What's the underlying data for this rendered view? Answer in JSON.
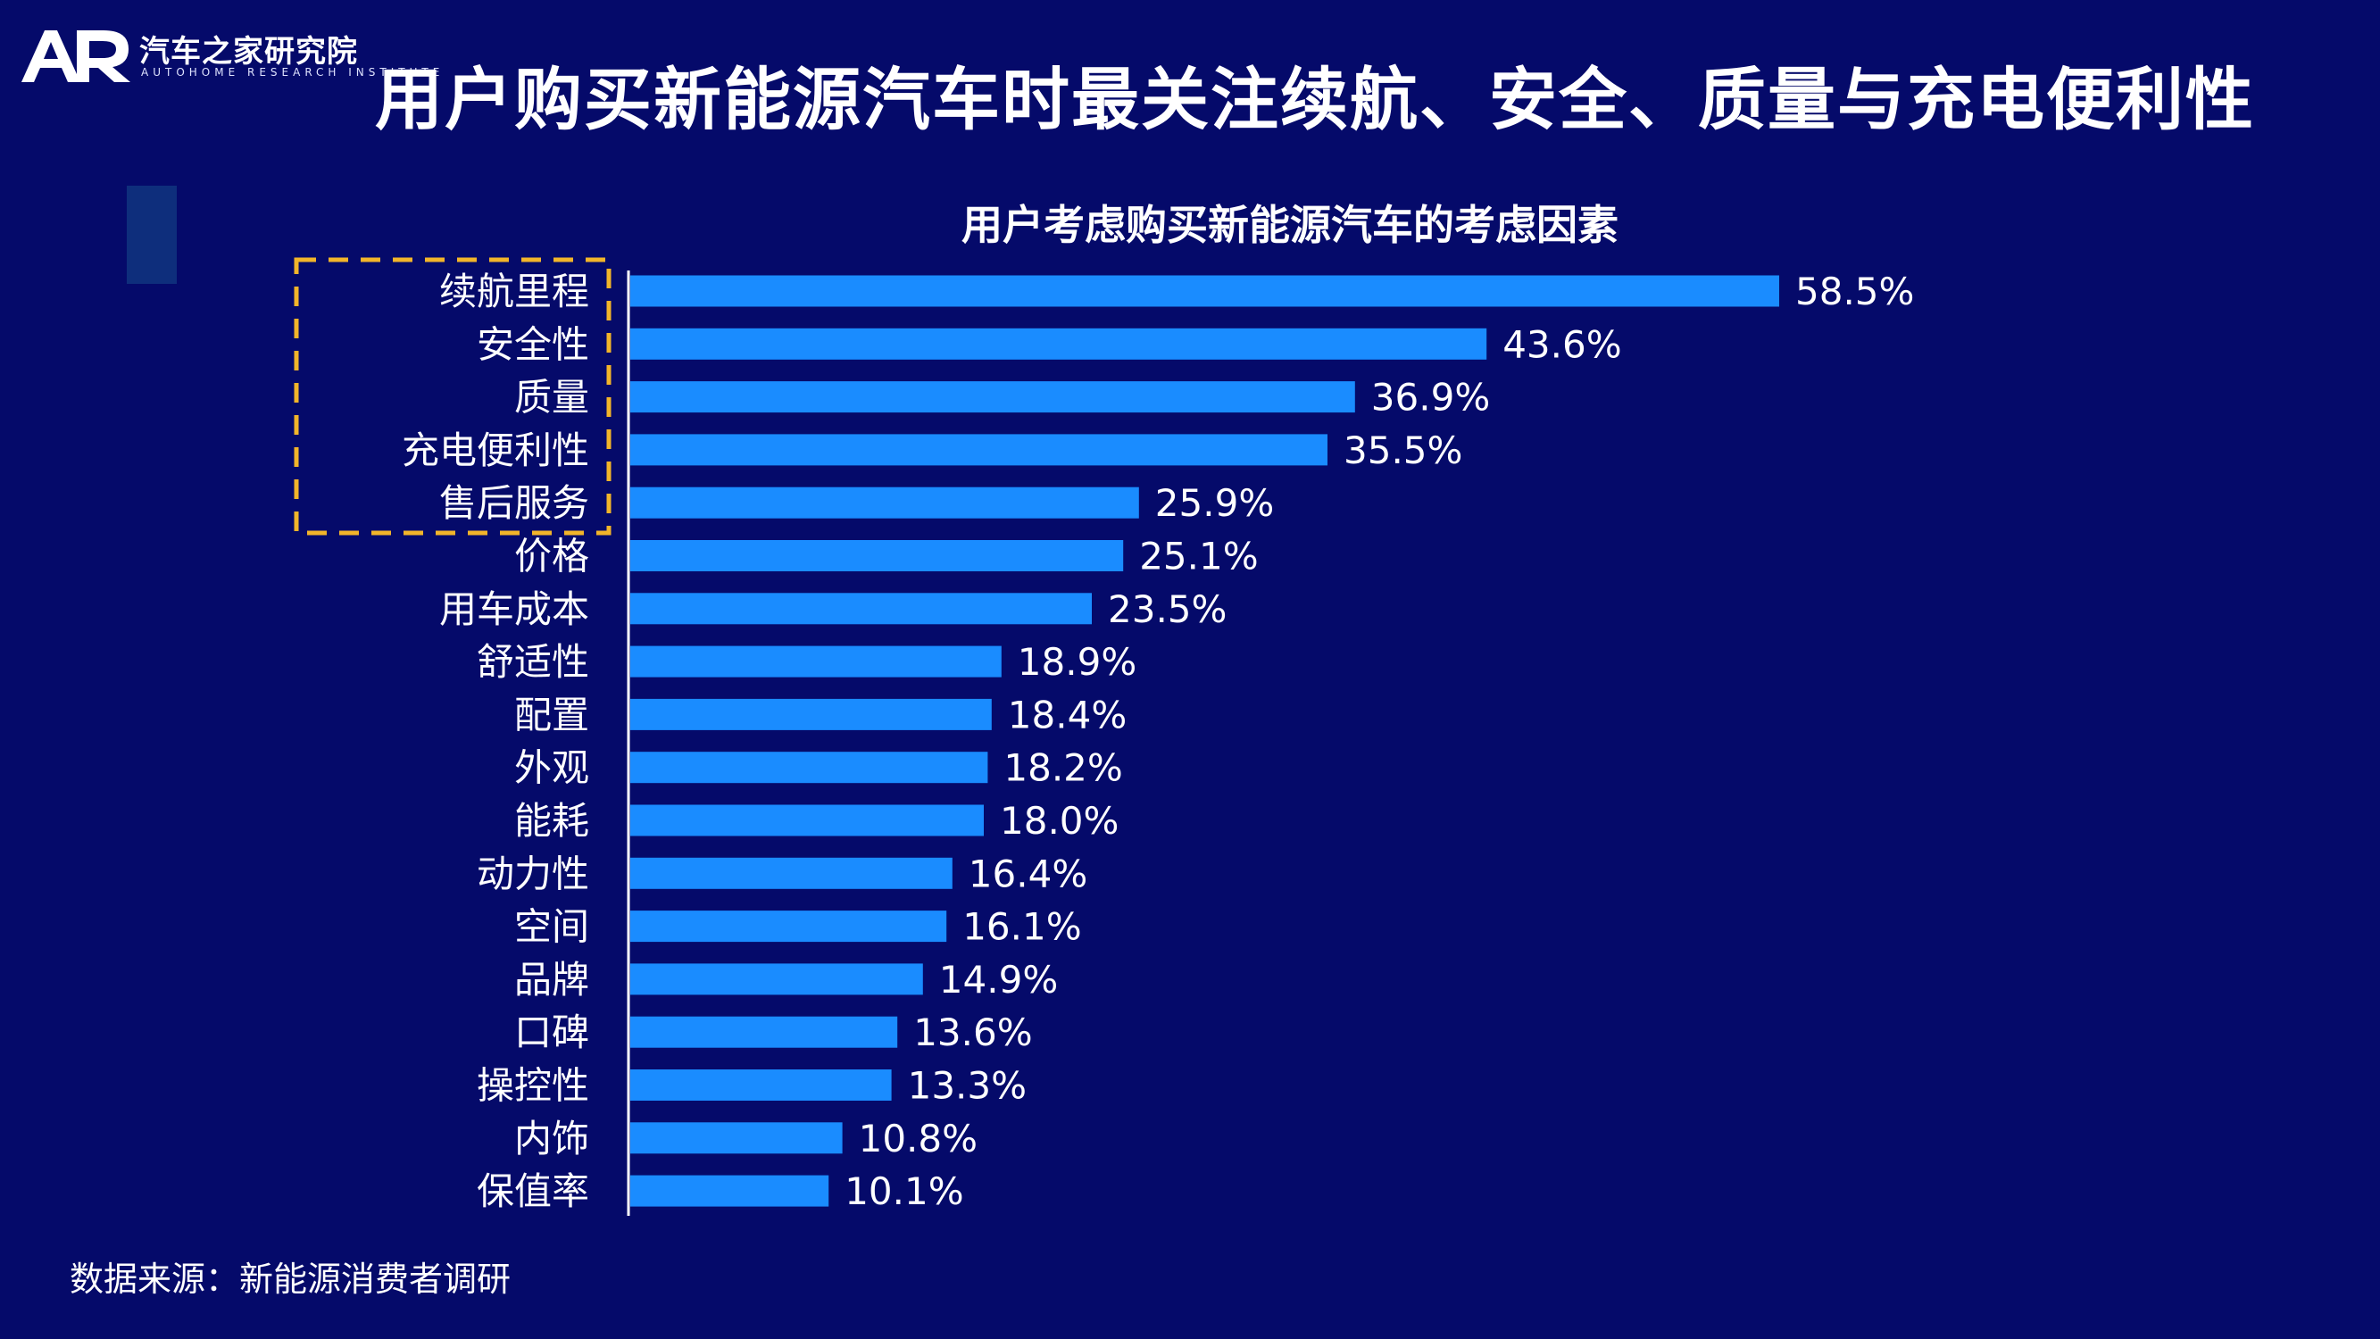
{
  "header": {
    "logo_name": "汽车之家研究院",
    "logo_sub": "AUTOHOME RESEARCH INSTITUTE",
    "title": "用户购买新能源汽车时最关注续航、安全、质量与充电便利性"
  },
  "footer": {
    "source": "数据来源：新能源消费者调研"
  },
  "colors": {
    "background": "#050a6a",
    "bar": "#1a8cff",
    "highlight_box": "#f2b52a"
  },
  "chart_data": {
    "type": "bar",
    "orientation": "horizontal",
    "title": "用户考虑购买新能源汽车的考虑因素",
    "categories": [
      "续航里程",
      "安全性",
      "质量",
      "充电便利性",
      "售后服务",
      "价格",
      "用车成本",
      "舒适性",
      "配置",
      "外观",
      "能耗",
      "动力性",
      "空间",
      "品牌",
      "口碑",
      "操控性",
      "内饰",
      "保值率"
    ],
    "values": [
      58.5,
      43.6,
      36.9,
      35.5,
      25.9,
      25.1,
      23.5,
      18.9,
      18.4,
      18.2,
      18.0,
      16.4,
      16.1,
      14.9,
      13.6,
      13.3,
      10.8,
      10.1
    ],
    "value_labels": [
      "58.5%",
      "43.6%",
      "36.9%",
      "35.5%",
      "25.9%",
      "25.1%",
      "23.5%",
      "18.9%",
      "18.4%",
      "18.2%",
      "18.0%",
      "16.4%",
      "16.1%",
      "14.9%",
      "13.6%",
      "13.3%",
      "10.8%",
      "10.1%"
    ],
    "unit": "%",
    "highlighted_categories": [
      "续航里程",
      "安全性",
      "质量",
      "充电便利性",
      "售后服务"
    ],
    "grid": false,
    "legend": "none"
  }
}
